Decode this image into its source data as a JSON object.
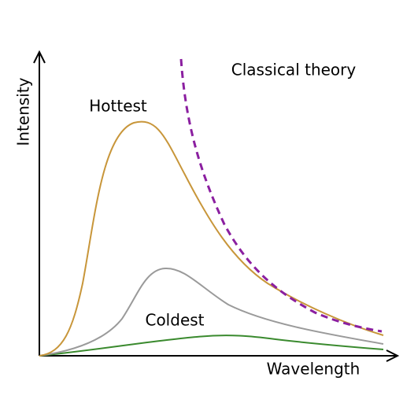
{
  "axes": {
    "y_label": "Intensity",
    "x_label": "Wavelength"
  },
  "annotations": {
    "hottest": "Hottest",
    "coldest": "Coldest",
    "classical": "Classical theory"
  }
}
